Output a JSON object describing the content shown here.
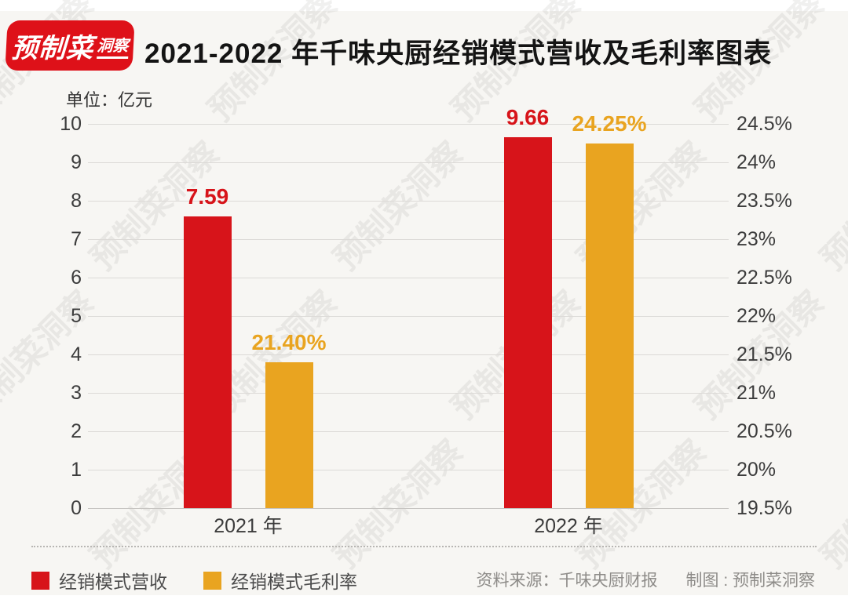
{
  "logo": {
    "text_main": "预制菜",
    "text_sub": "洞察",
    "color": "#de1119"
  },
  "header": {
    "title": "2021-2022 年千味央厨经销模式营收及毛利率图表"
  },
  "chart_data": {
    "type": "bar",
    "title": "2021-2022 年千味央厨经销模式营收及毛利率图表",
    "unit_label": "单位：亿元",
    "categories": [
      "2021 年",
      "2022 年"
    ],
    "series": [
      {
        "name": "经销模式营收",
        "axis": "left",
        "color": "#d7141a",
        "values": [
          7.59,
          9.66
        ],
        "labels": [
          "7.59",
          "9.66"
        ]
      },
      {
        "name": "经销模式毛利率",
        "axis": "right",
        "color": "#e9a420",
        "values": [
          21.4,
          24.25
        ],
        "labels": [
          "21.40%",
          "24.25%"
        ]
      }
    ],
    "left_axis": {
      "min": 0,
      "max": 10,
      "step": 1,
      "ticks": [
        "10",
        "9",
        "8",
        "7",
        "6",
        "5",
        "4",
        "3",
        "2",
        "1",
        "0"
      ]
    },
    "right_axis": {
      "min": 19.5,
      "max": 24.5,
      "step": 0.5,
      "ticks": [
        "24.5%",
        "24%",
        "23.5%",
        "23%",
        "22.5%",
        "22%",
        "21.5%",
        "21%",
        "20.5%",
        "20%",
        "19.5%"
      ]
    },
    "grid": true,
    "legend_position": "bottom-left"
  },
  "legend": {
    "items": [
      {
        "label": "经销模式营收",
        "color": "#d7141a"
      },
      {
        "label": "经销模式毛利率",
        "color": "#e9a420"
      }
    ]
  },
  "footer": {
    "source": "资料来源：千味央厨财报",
    "credit": "制图 : 预制菜洞察"
  },
  "watermark": {
    "text": "预制菜洞察"
  }
}
